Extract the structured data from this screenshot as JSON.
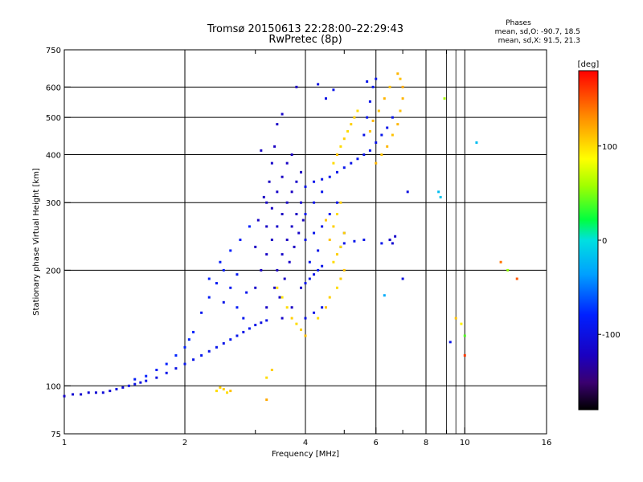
{
  "chart_data": {
    "type": "scatter",
    "title": "Tromsø 20150613 22:28:00–22:29:43",
    "subtitle": "RwPretec (8p)",
    "xlabel": "Frequency [MHz]",
    "ylabel": "Stationary phase Virtual Height [km]",
    "x_scale": "log",
    "y_scale": "log",
    "xlim": [
      1,
      16
    ],
    "ylim": [
      75,
      750
    ],
    "x_ticks": [
      1,
      2,
      4,
      6,
      8,
      10,
      16
    ],
    "x_minor_ticks": [
      3,
      5,
      7,
      9
    ],
    "y_ticks": [
      75,
      100,
      200,
      300,
      400,
      500,
      600,
      750
    ],
    "grid": true,
    "colorbar": {
      "label": "[deg]",
      "range": [
        -180,
        180
      ],
      "ticks": [
        100,
        0,
        -100
      ],
      "tick_labels": [
        "100",
        "0",
        "-100"
      ]
    },
    "stats": {
      "heading": "Phases",
      "line_o": "mean, sd,O: -90.7, 18.5",
      "line_x": "mean, sd,X:  91.5, 21.3"
    },
    "series": [
      {
        "points": [
          [
            1.0,
            94,
            -115
          ],
          [
            1.05,
            95,
            -110
          ],
          [
            1.1,
            95,
            -112
          ],
          [
            1.15,
            96,
            -108
          ],
          [
            1.2,
            96,
            -110
          ],
          [
            1.25,
            96,
            -105
          ],
          [
            1.3,
            97,
            -108
          ],
          [
            1.35,
            98,
            -100
          ],
          [
            1.4,
            99,
            -105
          ],
          [
            1.45,
            100,
            -100
          ],
          [
            1.5,
            101,
            -98
          ],
          [
            1.55,
            102,
            -102
          ],
          [
            1.6,
            103,
            -95
          ],
          [
            1.7,
            105,
            -100
          ],
          [
            1.8,
            108,
            -95
          ],
          [
            1.9,
            111,
            -98
          ],
          [
            2.0,
            114,
            -92
          ],
          [
            2.1,
            117,
            -95
          ],
          [
            2.2,
            120,
            -90
          ],
          [
            2.3,
            123,
            -95
          ],
          [
            2.4,
            126,
            -92
          ],
          [
            2.5,
            129,
            -95
          ],
          [
            2.6,
            132,
            -90
          ],
          [
            2.7,
            135,
            -92
          ],
          [
            2.8,
            138,
            -95
          ],
          [
            2.9,
            141,
            -90
          ],
          [
            3.0,
            144,
            -95
          ],
          [
            3.1,
            146,
            -100
          ],
          [
            3.2,
            148,
            -95
          ],
          [
            1.5,
            104,
            -85
          ],
          [
            1.6,
            106,
            -80
          ],
          [
            1.7,
            110,
            -82
          ],
          [
            1.8,
            114,
            -80
          ],
          [
            1.9,
            120,
            -78
          ],
          [
            2.0,
            126,
            -80
          ],
          [
            2.05,
            132,
            -78
          ],
          [
            2.1,
            138,
            -80
          ],
          [
            2.2,
            155,
            -90
          ],
          [
            2.3,
            170,
            -85
          ],
          [
            2.4,
            185,
            -88
          ],
          [
            2.5,
            200,
            -85
          ],
          [
            2.6,
            180,
            -90
          ],
          [
            2.7,
            160,
            -85
          ],
          [
            2.8,
            150,
            -90
          ],
          [
            2.3,
            190,
            -80
          ],
          [
            2.45,
            210,
            -85
          ],
          [
            2.6,
            225,
            -80
          ],
          [
            2.75,
            240,
            -85
          ],
          [
            2.9,
            260,
            -80
          ],
          [
            2.5,
            165,
            -95
          ],
          [
            2.7,
            195,
            -88
          ],
          [
            2.85,
            175,
            -92
          ],
          [
            3.0,
            180,
            -115
          ],
          [
            3.1,
            200,
            -120
          ],
          [
            3.2,
            220,
            -118
          ],
          [
            3.3,
            240,
            -120
          ],
          [
            3.4,
            260,
            -115
          ],
          [
            3.5,
            280,
            -120
          ],
          [
            3.6,
            300,
            -118
          ],
          [
            3.7,
            320,
            -120
          ],
          [
            3.8,
            340,
            -115
          ],
          [
            3.9,
            360,
            -120
          ],
          [
            3.2,
            260,
            -118
          ],
          [
            3.3,
            290,
            -120
          ],
          [
            3.4,
            320,
            -115
          ],
          [
            3.5,
            350,
            -120
          ],
          [
            3.6,
            380,
            -118
          ],
          [
            3.7,
            400,
            -120
          ],
          [
            3.2,
            300,
            -118
          ],
          [
            3.25,
            340,
            -120
          ],
          [
            3.3,
            380,
            -115
          ],
          [
            3.35,
            420,
            -120
          ],
          [
            3.1,
            410,
            -118
          ],
          [
            3.4,
            200,
            -120
          ],
          [
            3.5,
            220,
            -115
          ],
          [
            3.6,
            240,
            -120
          ],
          [
            3.7,
            260,
            -118
          ],
          [
            3.8,
            280,
            -120
          ],
          [
            3.9,
            300,
            -115
          ],
          [
            3.0,
            230,
            -120
          ],
          [
            3.05,
            270,
            -118
          ],
          [
            3.15,
            310,
            -120
          ],
          [
            3.45,
            170,
            -115
          ],
          [
            3.55,
            190,
            -120
          ],
          [
            3.65,
            210,
            -118
          ],
          [
            3.75,
            230,
            -120
          ],
          [
            3.85,
            250,
            -115
          ],
          [
            3.95,
            270,
            -120
          ],
          [
            3.2,
            160,
            -118
          ],
          [
            3.35,
            180,
            -120
          ],
          [
            3.5,
            150,
            -115
          ],
          [
            3.7,
            160,
            -120
          ],
          [
            3.9,
            180,
            -118
          ],
          [
            4.0,
            185,
            -95
          ],
          [
            4.1,
            190,
            -92
          ],
          [
            4.2,
            195,
            -95
          ],
          [
            4.3,
            200,
            -90
          ],
          [
            4.4,
            205,
            -95
          ],
          [
            4.0,
            150,
            -98
          ],
          [
            4.2,
            155,
            -95
          ],
          [
            4.4,
            160,
            -98
          ],
          [
            4.0,
            330,
            -95
          ],
          [
            4.2,
            340,
            -92
          ],
          [
            4.4,
            345,
            -95
          ],
          [
            4.6,
            350,
            -92
          ],
          [
            4.8,
            360,
            -95
          ],
          [
            5.0,
            370,
            -92
          ],
          [
            5.2,
            380,
            -95
          ],
          [
            5.4,
            390,
            -92
          ],
          [
            5.6,
            400,
            -95
          ],
          [
            5.8,
            410,
            -92
          ],
          [
            6.0,
            430,
            -95
          ],
          [
            6.2,
            450,
            -92
          ],
          [
            6.4,
            470,
            -95
          ],
          [
            6.6,
            500,
            -92
          ],
          [
            5.6,
            450,
            -95
          ],
          [
            5.7,
            500,
            -92
          ],
          [
            5.8,
            550,
            -95
          ],
          [
            5.9,
            600,
            -92
          ],
          [
            6.0,
            630,
            -95
          ],
          [
            5.7,
            620,
            -92
          ],
          [
            4.5,
            560,
            -98
          ],
          [
            4.7,
            590,
            -95
          ],
          [
            3.8,
            600,
            -120
          ],
          [
            4.3,
            610,
            -100
          ],
          [
            3.5,
            510,
            -115
          ],
          [
            3.4,
            480,
            -118
          ],
          [
            4.0,
            240,
            -95
          ],
          [
            4.2,
            250,
            -92
          ],
          [
            4.4,
            260,
            -95
          ],
          [
            4.6,
            280,
            -92
          ],
          [
            4.8,
            300,
            -95
          ],
          [
            4.0,
            280,
            -92
          ],
          [
            4.2,
            300,
            -95
          ],
          [
            4.4,
            320,
            -92
          ],
          [
            5.0,
            235,
            -95
          ],
          [
            5.3,
            238,
            -92
          ],
          [
            5.6,
            240,
            -95
          ],
          [
            6.2,
            235,
            -92
          ],
          [
            6.5,
            240,
            -95
          ],
          [
            5.0,
            250,
            -92
          ],
          [
            4.9,
            230,
            -95
          ],
          [
            4.1,
            210,
            -92
          ],
          [
            4.3,
            225,
            -95
          ],
          [
            6.5,
            240,
            -115
          ],
          [
            6.6,
            235,
            -110
          ],
          [
            6.7,
            245,
            -115
          ],
          [
            7.2,
            320,
            -100
          ],
          [
            7.0,
            190,
            -100
          ],
          [
            9.2,
            130,
            -95
          ],
          [
            10.7,
            430,
            -20
          ],
          [
            8.6,
            320,
            -20
          ],
          [
            8.7,
            310,
            -15
          ],
          [
            6.3,
            172,
            -30
          ],
          [
            8.9,
            560,
            60
          ],
          [
            12.8,
            200,
            55
          ],
          [
            10.0,
            135,
            40
          ],
          [
            9.8,
            145,
            90
          ],
          [
            9.5,
            150,
            110
          ],
          [
            12.3,
            210,
            140
          ],
          [
            10.0,
            120,
            160
          ],
          [
            13.5,
            190,
            150
          ],
          [
            4.3,
            150,
            100
          ],
          [
            4.5,
            160,
            110
          ],
          [
            4.6,
            170,
            105
          ],
          [
            4.8,
            180,
            100
          ],
          [
            4.9,
            190,
            105
          ],
          [
            5.0,
            200,
            110
          ],
          [
            4.7,
            210,
            100
          ],
          [
            4.8,
            220,
            105
          ],
          [
            4.9,
            230,
            100
          ],
          [
            5.0,
            250,
            105
          ],
          [
            4.6,
            240,
            110
          ],
          [
            4.7,
            260,
            105
          ],
          [
            4.8,
            280,
            100
          ],
          [
            4.9,
            300,
            105
          ],
          [
            4.5,
            270,
            110
          ],
          [
            3.5,
            170,
            95
          ],
          [
            3.6,
            160,
            100
          ],
          [
            3.7,
            150,
            105
          ],
          [
            3.8,
            145,
            100
          ],
          [
            3.9,
            140,
            105
          ],
          [
            4.0,
            135,
            110
          ],
          [
            3.4,
            180,
            100
          ],
          [
            3.3,
            110,
            105
          ],
          [
            3.2,
            105,
            100
          ],
          [
            2.4,
            97,
            100
          ],
          [
            2.5,
            98,
            105
          ],
          [
            2.6,
            97,
            110
          ],
          [
            2.55,
            96,
            100
          ],
          [
            2.45,
            99,
            105
          ],
          [
            3.2,
            92,
            120
          ],
          [
            4.9,
            420,
            100
          ],
          [
            5.0,
            440,
            105
          ],
          [
            5.1,
            460,
            100
          ],
          [
            5.2,
            480,
            105
          ],
          [
            4.8,
            400,
            110
          ],
          [
            4.7,
            380,
            100
          ],
          [
            5.3,
            500,
            105
          ],
          [
            5.4,
            520,
            100
          ],
          [
            6.0,
            380,
            115
          ],
          [
            6.2,
            400,
            110
          ],
          [
            6.4,
            420,
            115
          ],
          [
            6.6,
            450,
            110
          ],
          [
            6.8,
            480,
            115
          ],
          [
            6.9,
            520,
            110
          ],
          [
            7.0,
            560,
            115
          ],
          [
            7.0,
            600,
            120
          ],
          [
            6.9,
            630,
            110
          ],
          [
            6.8,
            650,
            115
          ],
          [
            6.5,
            600,
            110
          ],
          [
            6.3,
            560,
            115
          ],
          [
            6.1,
            520,
            110
          ],
          [
            5.9,
            490,
            115
          ],
          [
            5.8,
            460,
            110
          ]
        ]
      }
    ]
  }
}
